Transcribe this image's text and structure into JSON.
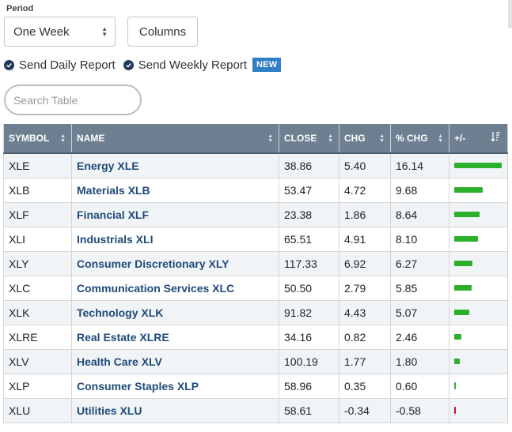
{
  "period": {
    "label": "Period",
    "selected": "One Week"
  },
  "columns_label": "Columns",
  "options": {
    "daily_label": "Send Daily Report",
    "weekly_label": "Send Weekly Report",
    "new_badge": "NEW"
  },
  "search": {
    "placeholder": "Search Table"
  },
  "table": {
    "headers": [
      "SYMBOL",
      "NAME",
      "CLOSE",
      "CHG",
      "% CHG",
      "+/-"
    ],
    "rows": [
      {
        "symbol": "XLE",
        "name": "Energy XLE",
        "close": "38.86",
        "chg": "5.40",
        "pct": "16.14",
        "pct_value": 16.14
      },
      {
        "symbol": "XLB",
        "name": "Materials XLB",
        "close": "53.47",
        "chg": "4.72",
        "pct": "9.68",
        "pct_value": 9.68
      },
      {
        "symbol": "XLF",
        "name": "Financial XLF",
        "close": "23.38",
        "chg": "1.86",
        "pct": "8.64",
        "pct_value": 8.64
      },
      {
        "symbol": "XLI",
        "name": "Industrials XLI",
        "close": "65.51",
        "chg": "4.91",
        "pct": "8.10",
        "pct_value": 8.1
      },
      {
        "symbol": "XLY",
        "name": "Consumer Discretionary XLY",
        "close": "117.33",
        "chg": "6.92",
        "pct": "6.27",
        "pct_value": 6.27
      },
      {
        "symbol": "XLC",
        "name": "Communication Services XLC",
        "close": "50.50",
        "chg": "2.79",
        "pct": "5.85",
        "pct_value": 5.85
      },
      {
        "symbol": "XLK",
        "name": "Technology XLK",
        "close": "91.82",
        "chg": "4.43",
        "pct": "5.07",
        "pct_value": 5.07
      },
      {
        "symbol": "XLRE",
        "name": "Real Estate XLRE",
        "close": "34.16",
        "chg": "0.82",
        "pct": "2.46",
        "pct_value": 2.46
      },
      {
        "symbol": "XLV",
        "name": "Health Care XLV",
        "close": "100.19",
        "chg": "1.77",
        "pct": "1.80",
        "pct_value": 1.8
      },
      {
        "symbol": "XLP",
        "name": "Consumer Staples XLP",
        "close": "58.96",
        "chg": "0.35",
        "pct": "0.60",
        "pct_value": 0.6
      },
      {
        "symbol": "XLU",
        "name": "Utilities XLU",
        "close": "58.61",
        "chg": "-0.34",
        "pct": "-0.58",
        "pct_value": -0.58
      }
    ]
  },
  "colors": {
    "header_bg": "#6d7f90",
    "name_link": "#1f4a7a",
    "bar_positive": "#2cb02c",
    "bar_negative": "#c8102e",
    "new_badge_bg": "#2f7fc8",
    "check_icon": "#1f3b57"
  },
  "icons": {
    "select_caret": "up-down-caret-icon",
    "check": "check-circle-icon",
    "sort": "sort-icon",
    "sort_desc": "sort-descending-icon"
  }
}
